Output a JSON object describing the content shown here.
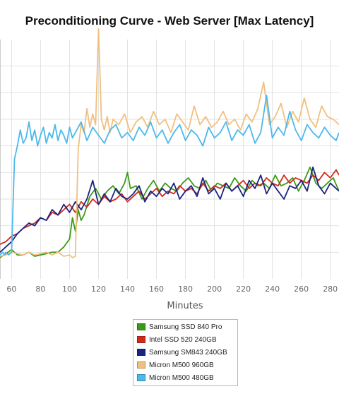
{
  "chart_data": {
    "type": "line",
    "title": "Preconditioning Curve - Web Server [Max Latency]",
    "xlabel": "Minutes",
    "ylabel": "",
    "x_ticks": [
      60,
      80,
      100,
      120,
      140,
      160,
      180,
      200,
      220,
      240,
      260,
      280
    ],
    "xlim": [
      52,
      286
    ],
    "ylim": [
      0,
      9
    ],
    "y_gridlines": [
      1,
      2,
      3,
      4,
      5,
      6,
      7,
      8
    ],
    "grid": true,
    "legend_position": "bottom-center",
    "series": [
      {
        "name": "Samsung SSD 840 Pro",
        "color": "#3a9a17",
        "x": [
          52,
          56,
          60,
          64,
          68,
          72,
          76,
          80,
          84,
          88,
          92,
          96,
          100,
          102,
          104,
          106,
          108,
          110,
          114,
          118,
          122,
          126,
          130,
          134,
          138,
          140,
          142,
          146,
          150,
          154,
          158,
          162,
          166,
          170,
          174,
          178,
          182,
          186,
          190,
          194,
          198,
          202,
          206,
          210,
          214,
          218,
          222,
          226,
          230,
          234,
          238,
          242,
          246,
          250,
          254,
          258,
          262,
          266,
          270,
          274,
          278,
          282,
          286
        ],
        "values": [
          0.8,
          0.95,
          1.1,
          0.9,
          0.9,
          1.0,
          0.85,
          0.9,
          0.95,
          1.0,
          1.0,
          1.2,
          1.5,
          2.3,
          1.8,
          2.6,
          2.2,
          2.4,
          3.1,
          3.4,
          3.0,
          3.3,
          3.5,
          3.2,
          3.6,
          4.0,
          3.4,
          3.5,
          3.0,
          3.4,
          3.7,
          3.3,
          3.6,
          3.4,
          3.3,
          3.6,
          3.8,
          3.5,
          3.4,
          3.7,
          3.3,
          3.6,
          3.5,
          3.4,
          3.8,
          3.5,
          3.3,
          3.7,
          3.5,
          3.6,
          3.4,
          3.9,
          3.5,
          3.6,
          3.8,
          3.3,
          3.7,
          4.2,
          3.6,
          3.4,
          3.6,
          3.8,
          3.3
        ]
      },
      {
        "name": "Intel SSD 520 240GB",
        "color": "#d12a1c",
        "x": [
          52,
          56,
          60,
          64,
          68,
          72,
          76,
          80,
          84,
          88,
          92,
          96,
          100,
          104,
          108,
          112,
          116,
          120,
          124,
          128,
          132,
          136,
          140,
          144,
          148,
          152,
          156,
          160,
          164,
          168,
          172,
          176,
          180,
          184,
          188,
          192,
          196,
          200,
          204,
          208,
          212,
          216,
          220,
          224,
          228,
          232,
          236,
          240,
          244,
          248,
          252,
          256,
          260,
          264,
          268,
          272,
          276,
          280,
          284,
          286
        ],
        "values": [
          1.3,
          1.4,
          1.6,
          1.7,
          1.9,
          2.0,
          2.1,
          2.3,
          2.2,
          2.5,
          2.4,
          2.6,
          2.8,
          2.5,
          2.9,
          2.7,
          3.0,
          2.8,
          3.1,
          2.9,
          3.0,
          3.2,
          2.9,
          3.1,
          3.3,
          3.0,
          3.2,
          3.4,
          3.1,
          3.3,
          3.2,
          3.5,
          3.3,
          3.4,
          3.2,
          3.6,
          3.3,
          3.5,
          3.4,
          3.6,
          3.3,
          3.5,
          3.7,
          3.4,
          3.6,
          3.5,
          3.8,
          3.6,
          3.5,
          3.9,
          3.6,
          3.8,
          3.7,
          3.6,
          3.9,
          3.7,
          4.0,
          3.8,
          4.1,
          3.9
        ]
      },
      {
        "name": "Samsung SM843 240GB",
        "color": "#1a2380",
        "x": [
          52,
          56,
          60,
          64,
          68,
          72,
          76,
          80,
          84,
          88,
          92,
          96,
          100,
          104,
          108,
          112,
          116,
          120,
          124,
          128,
          132,
          136,
          140,
          144,
          148,
          152,
          156,
          160,
          164,
          168,
          172,
          176,
          180,
          184,
          188,
          192,
          196,
          200,
          204,
          208,
          212,
          216,
          220,
          224,
          228,
          232,
          236,
          240,
          244,
          248,
          252,
          256,
          260,
          264,
          268,
          272,
          276,
          280,
          284,
          286
        ],
        "values": [
          1.0,
          1.2,
          1.4,
          1.7,
          1.9,
          2.1,
          2.0,
          2.3,
          2.2,
          2.6,
          2.4,
          2.8,
          2.5,
          2.9,
          2.6,
          3.0,
          3.7,
          2.8,
          3.2,
          2.9,
          3.4,
          3.1,
          3.0,
          3.2,
          3.5,
          2.9,
          3.3,
          3.1,
          3.4,
          3.2,
          3.6,
          3.0,
          3.3,
          3.5,
          3.1,
          3.8,
          3.2,
          3.4,
          3.0,
          3.6,
          3.3,
          3.5,
          3.1,
          3.7,
          3.4,
          3.9,
          3.2,
          3.6,
          3.3,
          3.0,
          3.5,
          3.4,
          3.7,
          3.3,
          4.2,
          3.5,
          3.2,
          3.6,
          3.4,
          3.3
        ]
      },
      {
        "name": "Micron M500 960GB",
        "color": "#f0c080",
        "x": [
          52,
          56,
          60,
          64,
          68,
          72,
          76,
          80,
          84,
          88,
          92,
          96,
          100,
          102,
          104,
          106,
          108,
          110,
          112,
          114,
          116,
          118,
          120,
          122,
          124,
          126,
          128,
          130,
          134,
          138,
          142,
          146,
          150,
          154,
          158,
          162,
          166,
          170,
          174,
          178,
          182,
          186,
          190,
          194,
          198,
          202,
          206,
          210,
          214,
          218,
          222,
          226,
          230,
          234,
          238,
          242,
          246,
          250,
          254,
          258,
          262,
          266,
          270,
          274,
          278,
          282,
          286
        ],
        "values": [
          0.85,
          0.9,
          1.0,
          0.95,
          0.9,
          1.0,
          0.9,
          0.95,
          1.0,
          0.9,
          1.0,
          0.85,
          0.9,
          0.8,
          0.85,
          4.9,
          5.8,
          5.5,
          6.4,
          5.7,
          6.2,
          5.8,
          9.4,
          6.0,
          5.6,
          6.1,
          5.5,
          6.0,
          5.8,
          6.2,
          5.5,
          5.9,
          6.1,
          5.7,
          6.3,
          5.8,
          6.0,
          5.5,
          6.2,
          5.9,
          5.6,
          6.5,
          5.8,
          6.1,
          5.7,
          5.9,
          6.3,
          5.8,
          6.0,
          5.6,
          6.2,
          5.9,
          6.4,
          7.4,
          5.8,
          6.1,
          6.6,
          5.7,
          6.3,
          5.9,
          6.8,
          6.0,
          5.7,
          6.5,
          6.1,
          6.0,
          5.8
        ]
      },
      {
        "name": "Micron M500 480GB",
        "color": "#4bb9ec",
        "x": [
          52,
          53,
          54,
          55,
          56,
          57,
          58,
          60,
          62,
          64,
          66,
          68,
          70,
          72,
          74,
          76,
          78,
          80,
          82,
          84,
          86,
          88,
          90,
          92,
          94,
          96,
          98,
          100,
          102,
          104,
          108,
          112,
          116,
          120,
          124,
          128,
          132,
          136,
          140,
          144,
          148,
          152,
          156,
          160,
          164,
          168,
          172,
          176,
          180,
          184,
          188,
          192,
          196,
          200,
          204,
          208,
          212,
          216,
          220,
          224,
          228,
          232,
          236,
          240,
          244,
          248,
          252,
          256,
          260,
          264,
          268,
          272,
          276,
          280,
          284,
          286
        ],
        "values": [
          0.9,
          0.95,
          1.0,
          0.9,
          1.0,
          0.95,
          0.9,
          1.0,
          4.5,
          5.0,
          5.6,
          5.1,
          5.3,
          5.9,
          5.2,
          5.6,
          5.0,
          5.4,
          5.7,
          5.1,
          5.5,
          5.3,
          5.8,
          5.2,
          5.6,
          5.4,
          5.1,
          5.7,
          5.3,
          5.5,
          5.9,
          5.2,
          5.7,
          5.4,
          5.1,
          5.6,
          5.8,
          5.3,
          5.5,
          5.2,
          5.7,
          5.4,
          5.9,
          5.3,
          5.6,
          5.1,
          5.5,
          5.8,
          5.2,
          5.6,
          5.4,
          5.0,
          5.7,
          5.3,
          5.5,
          5.9,
          5.2,
          5.6,
          5.4,
          5.8,
          5.1,
          5.5,
          6.9,
          5.3,
          5.7,
          5.4,
          6.3,
          5.6,
          5.2,
          5.8,
          5.5,
          5.3,
          5.7,
          5.4,
          5.2,
          5.5
        ]
      }
    ]
  }
}
